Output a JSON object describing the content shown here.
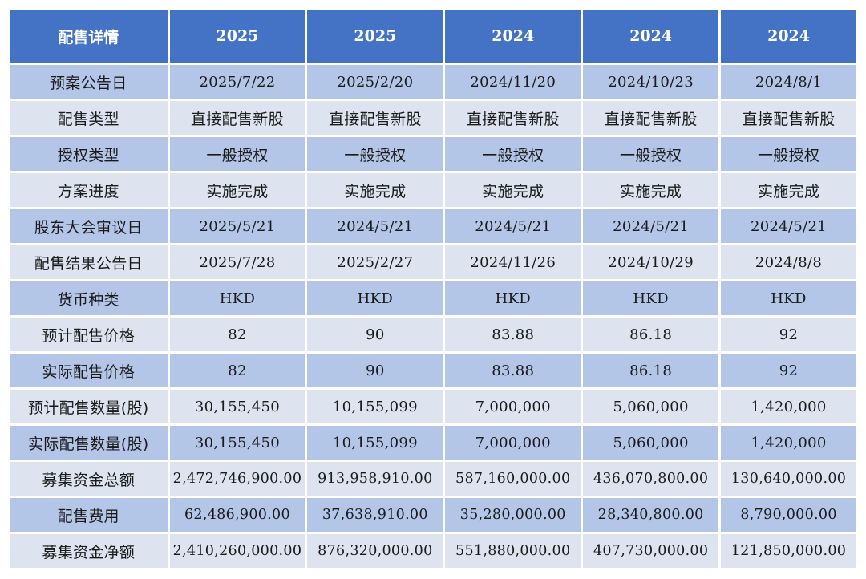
{
  "header": {
    "label": "配售详情",
    "years": [
      "2025",
      "2025",
      "2024",
      "2024",
      "2024"
    ]
  },
  "rows": [
    {
      "label": "预案公告日",
      "values": [
        "2025/7/22",
        "2025/2/20",
        "2024/11/20",
        "2024/10/23",
        "2024/8/1"
      ]
    },
    {
      "label": "配售类型",
      "values": [
        "直接配售新股",
        "直接配售新股",
        "直接配售新股",
        "直接配售新股",
        "直接配售新股"
      ]
    },
    {
      "label": "授权类型",
      "values": [
        "一般授权",
        "一般授权",
        "一般授权",
        "一般授权",
        "一般授权"
      ]
    },
    {
      "label": "方案进度",
      "values": [
        "实施完成",
        "实施完成",
        "实施完成",
        "实施完成",
        "实施完成"
      ]
    },
    {
      "label": "股东大会审议日",
      "values": [
        "2025/5/21",
        "2024/5/21",
        "2024/5/21",
        "2024/5/21",
        "2024/5/21"
      ]
    },
    {
      "label": "配售结果公告日",
      "values": [
        "2025/7/28",
        "2025/2/27",
        "2024/11/26",
        "2024/10/29",
        "2024/8/8"
      ]
    },
    {
      "label": "货币种类",
      "values": [
        "HKD",
        "HKD",
        "HKD",
        "HKD",
        "HKD"
      ]
    },
    {
      "label": "预计配售价格",
      "values": [
        "82",
        "90",
        "83.88",
        "86.18",
        "92"
      ]
    },
    {
      "label": "实际配售价格",
      "values": [
        "82",
        "90",
        "83.88",
        "86.18",
        "92"
      ]
    },
    {
      "label": "预计配售数量(股)",
      "values": [
        "30,155,450",
        "10,155,099",
        "7,000,000",
        "5,060,000",
        "1,420,000"
      ]
    },
    {
      "label": "实际配售数量(股)",
      "values": [
        "30,155,450",
        "10,155,099",
        "7,000,000",
        "5,060,000",
        "1,420,000"
      ]
    },
    {
      "label": "募集资金总额",
      "values": [
        "2,472,746,900.00",
        "913,958,910.00",
        "587,160,000.00",
        "436,070,800.00",
        "130,640,000.00"
      ]
    },
    {
      "label": "配售费用",
      "values": [
        "62,486,900.00",
        "37,638,910.00",
        "35,280,000.00",
        "28,340,800.00",
        "8,790,000.00"
      ]
    },
    {
      "label": "募集资金净额",
      "values": [
        "2,410,260,000.00",
        "876,320,000.00",
        "551,880,000.00",
        "407,730,000.00",
        "121,850,000.00"
      ]
    }
  ],
  "colors": {
    "header_bg": "#4472c4",
    "row_dark": "#b4c6e7",
    "row_light": "#dde4f0"
  }
}
